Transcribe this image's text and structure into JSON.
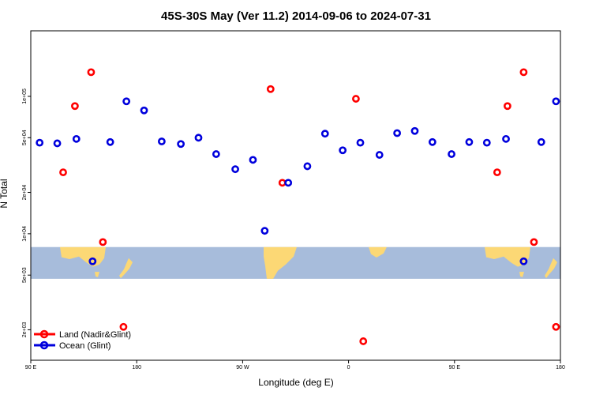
{
  "chart_data": {
    "type": "scatter",
    "title": "45S-30S May (Ver 11.2)   2014-09-06 to 2024-07-31",
    "xlabel": "Longitude (deg E)",
    "ylabel": "N Total",
    "xlim": [
      90,
      450
    ],
    "ylim": [
      1200,
      300000
    ],
    "y_scale": "log",
    "x_ticks": [
      {
        "value": 90,
        "label": "90 E"
      },
      {
        "value": 162,
        "label": "180"
      },
      {
        "value": 234,
        "label": "90 W"
      },
      {
        "value": 306,
        "label": "0"
      },
      {
        "value": 378,
        "label": "90 E"
      },
      {
        "value": 450,
        "label": "180"
      }
    ],
    "y_ticks": [
      {
        "value": 2000,
        "label": "2e+03"
      },
      {
        "value": 5000,
        "label": "5e+03"
      },
      {
        "value": 10000,
        "label": "1e+04"
      },
      {
        "value": 20000,
        "label": "2e+04"
      },
      {
        "value": 50000,
        "label": "5e+04"
      },
      {
        "value": 100000,
        "label": "1e+05"
      }
    ],
    "series": [
      {
        "name": "Land (Nadir&Glint)",
        "color": "#ff0000",
        "points": [
          {
            "x": 112,
            "y": 28000
          },
          {
            "x": 120,
            "y": 85000
          },
          {
            "x": 131,
            "y": 150000
          },
          {
            "x": 139,
            "y": 8700
          },
          {
            "x": 153,
            "y": 2100
          },
          {
            "x": 253,
            "y": 113000
          },
          {
            "x": 261,
            "y": 23500
          },
          {
            "x": 311,
            "y": 96000
          },
          {
            "x": 316,
            "y": 1650
          },
          {
            "x": 407,
            "y": 28000
          },
          {
            "x": 414,
            "y": 85000
          },
          {
            "x": 425,
            "y": 150000
          },
          {
            "x": 432,
            "y": 8700
          },
          {
            "x": 447,
            "y": 2100
          }
        ]
      },
      {
        "name": "Ocean (Glint)",
        "color": "#0000dd",
        "points": [
          {
            "x": 96,
            "y": 46000
          },
          {
            "x": 108,
            "y": 45500
          },
          {
            "x": 121,
            "y": 49000
          },
          {
            "x": 132,
            "y": 6300
          },
          {
            "x": 144,
            "y": 46500
          },
          {
            "x": 155,
            "y": 92000
          },
          {
            "x": 167,
            "y": 79000
          },
          {
            "x": 179,
            "y": 47000
          },
          {
            "x": 192,
            "y": 45000
          },
          {
            "x": 204,
            "y": 50000
          },
          {
            "x": 216,
            "y": 38000
          },
          {
            "x": 229,
            "y": 29500
          },
          {
            "x": 241,
            "y": 34500
          },
          {
            "x": 249,
            "y": 10500
          },
          {
            "x": 265,
            "y": 23500
          },
          {
            "x": 278,
            "y": 31000
          },
          {
            "x": 290,
            "y": 53500
          },
          {
            "x": 302,
            "y": 40500
          },
          {
            "x": 314,
            "y": 46000
          },
          {
            "x": 327,
            "y": 37500
          },
          {
            "x": 339,
            "y": 54000
          },
          {
            "x": 351,
            "y": 56000
          },
          {
            "x": 363,
            "y": 46500
          },
          {
            "x": 376,
            "y": 38000
          },
          {
            "x": 388,
            "y": 46500
          },
          {
            "x": 400,
            "y": 46000
          },
          {
            "x": 413,
            "y": 49000
          },
          {
            "x": 425,
            "y": 6300
          },
          {
            "x": 437,
            "y": 46500
          },
          {
            "x": 447,
            "y": 92000
          }
        ]
      }
    ],
    "legend": {
      "position": "bottom-left"
    },
    "grid": false,
    "background_map_band": {
      "y_range": [
        4700,
        8000
      ],
      "ocean_color": "#a7bcdb",
      "land_color": "#fcd875"
    }
  }
}
